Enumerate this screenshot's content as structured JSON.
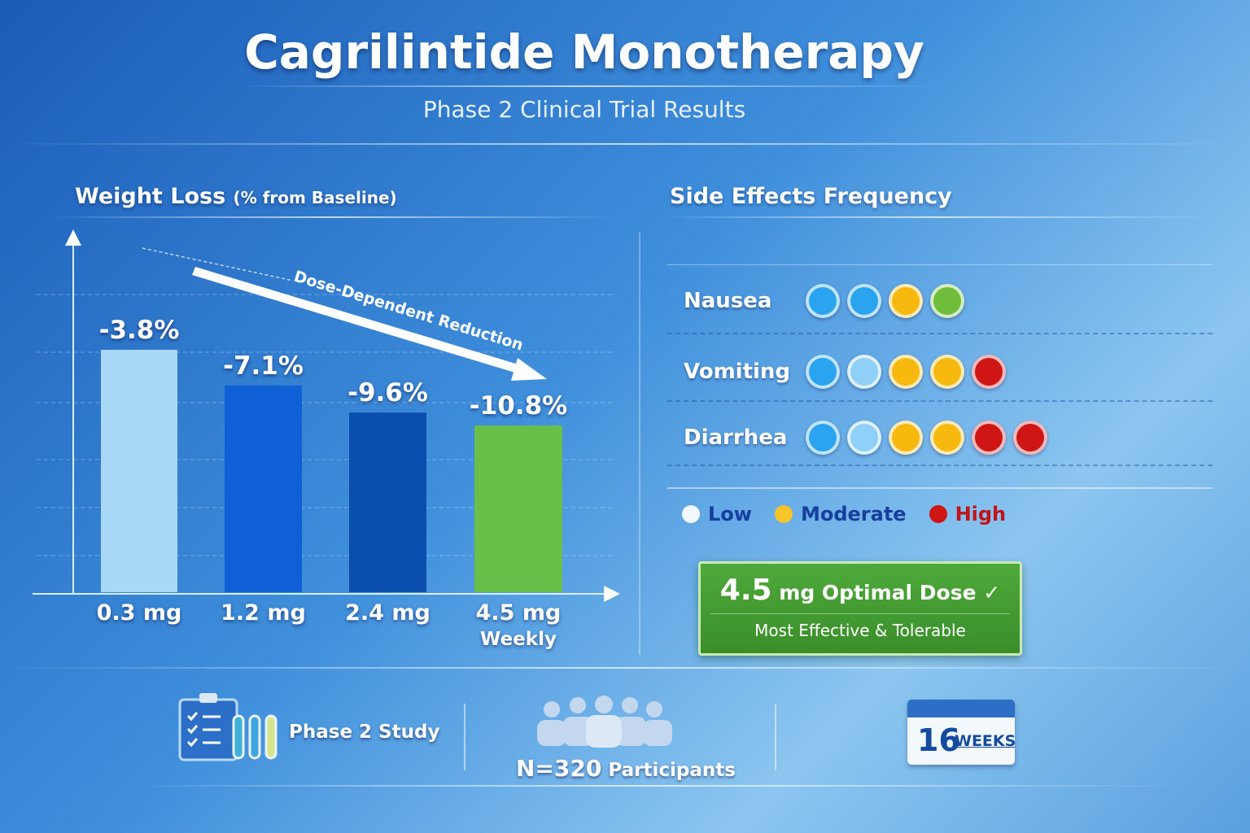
{
  "header": {
    "title": "Cagrilintide Monotherapy",
    "subtitle": "Phase 2 Clinical Trial Results"
  },
  "chart_data": {
    "type": "bar",
    "title": "Weight Loss",
    "title_suffix": "(% from Baseline)",
    "categories": [
      "0.3 mg",
      "1.2 mg",
      "2.4 mg",
      "4.5 mg"
    ],
    "category_sublabels": [
      "",
      "",
      "",
      "Weekly"
    ],
    "values": [
      -3.8,
      -7.1,
      -9.6,
      -10.8
    ],
    "data_labels": [
      "-3.8%",
      "-7.1%",
      "-9.6%",
      "-10.8%"
    ],
    "colors": [
      "#a9d8f7",
      "#0f5fd6",
      "#0b4fae",
      "#6abf4b"
    ],
    "annotation": "Dose-Dependent Reduction",
    "grid": true
  },
  "side_effects": {
    "title": "Side Effects Frequency",
    "rows": [
      {
        "name": "Nausea",
        "dots": [
          "#2aa4ee",
          "#2aa4ee",
          "#f7b90e",
          "#6fbd3a"
        ]
      },
      {
        "name": "Vomiting",
        "dots": [
          "#2aa4ee",
          "#8fd0f8",
          "#f7b90e",
          "#f7b90e",
          "#d01515"
        ]
      },
      {
        "name": "Diarrhea",
        "dots": [
          "#2aa4ee",
          "#8fd0f8",
          "#f7b90e",
          "#f7b90e",
          "#d01515",
          "#d01515"
        ]
      }
    ],
    "legend": [
      {
        "label": "Low",
        "color": "#f2f8ff",
        "text_color": "#163f9e"
      },
      {
        "label": "Moderate",
        "color": "#f7c52a",
        "text_color": "#163f9e"
      },
      {
        "label": "High",
        "color": "#d01515",
        "text_color": "#c0141a"
      }
    ]
  },
  "callout": {
    "dose": "4.5",
    "rest": "mg Optimal Dose ✓",
    "sub": "Most Effective & Tolerable"
  },
  "footer": {
    "study": "Phase 2 Study",
    "n": "N=320",
    "participants": "Participants",
    "weeks_num": "16",
    "weeks_label": "WEEKS"
  }
}
